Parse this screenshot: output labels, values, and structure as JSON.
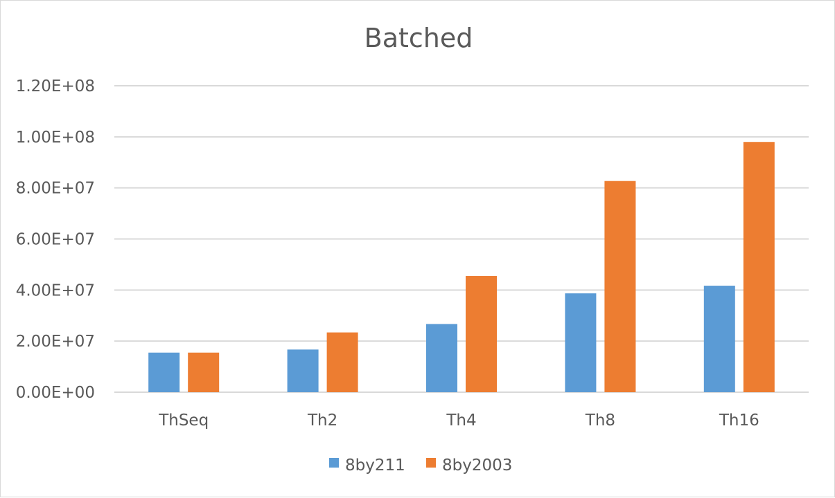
{
  "chart_data": {
    "type": "bar",
    "title": "Batched",
    "categories": [
      "ThSeq",
      "Th2",
      "Th4",
      "Th8",
      "Th16"
    ],
    "series": [
      {
        "name": "8by211",
        "color": "#5B9BD5",
        "values": [
          15500000,
          16700000,
          26700000,
          38700000,
          41700000
        ]
      },
      {
        "name": "8by2003",
        "color": "#ED7D31",
        "values": [
          15500000,
          23400000,
          45500000,
          82700000,
          98000000
        ]
      }
    ],
    "ylim": [
      0,
      120000000
    ],
    "yticks": [
      0,
      20000000,
      40000000,
      60000000,
      80000000,
      100000000,
      120000000
    ],
    "ytick_labels": [
      "0.00E+00",
      "2.00E+07",
      "4.00E+07",
      "6.00E+07",
      "8.00E+07",
      "1.00E+08",
      "1.20E+08"
    ],
    "grid": true,
    "legend_position": "bottom",
    "xlabel": "",
    "ylabel": ""
  }
}
